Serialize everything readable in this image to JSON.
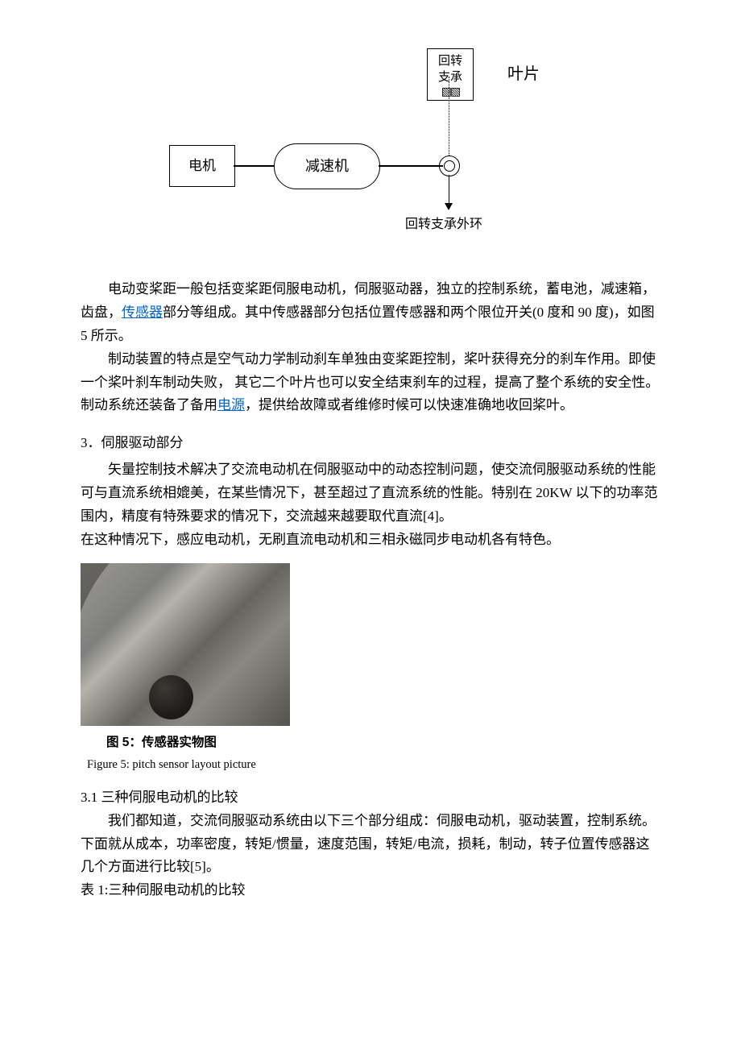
{
  "diagram": {
    "motor_label": "电机",
    "reducer_label": "减速机",
    "bearing_line1": "回转",
    "bearing_line2": "支承",
    "bearing_hatch": "▧▧",
    "blade_label": "叶片",
    "outer_ring_label": "回转支承外环"
  },
  "body": {
    "p1_a": "电动变桨距一般包括变桨距伺服电动机，伺服驱动器，独立的控制系统，蓄电池，减速箱，齿盘，",
    "sensor_link": "传感器",
    "p1_b": "部分等组成。其中传感器部分包括位置传感器和两个限位开关(0 度和 90 度)，如图 5 所示。",
    "p2_a": "制动装置的特点是空气动力学制动刹车单独由变桨距控制，桨叶获得充分的刹车作用。即使一个桨叶刹车制动失败，   其它二个叶片也可以安全结束刹车的过程，提高了整个系统的安全性。制动系统还装备了备用",
    "power_link": "电源",
    "p2_b": "，提供给故障或者维修时候可以快速准确地收回桨叶。",
    "h3": "3．伺服驱动部分",
    "p3": "矢量控制技术解决了交流电动机在伺服驱动中的动态控制问题，使交流伺服驱动系统的性能可与直流系统相媲美，在某些情况下，甚至超过了直流系统的性能。特别在 20KW 以下的功率范围内，精度有特殊要求的情况下，交流越来越要取代直流[4]。",
    "p4": "在这种情况下，感应电动机，无刷直流电动机和三相永磁同步电动机各有特色。",
    "fig5_cn": "图 5：传感器实物图",
    "fig5_en": "Figure 5: pitch sensor layout picture",
    "h31": "3.1  三种伺服电动机的比较",
    "p5": "我们都知道，交流伺服驱动系统由以下三个部分组成：伺服电动机，驱动装置，控制系统。下面就从成本，功率密度，转矩/惯量，速度范围，转矩/电流，损耗，制动，转子位置传感器这几个方面进行比较[5]。",
    "table_title": "表 1:三种伺服电动机的比较"
  },
  "links": {
    "sensor_href": "#",
    "power_href": "#"
  },
  "colors": {
    "link_color": "#0066cc",
    "text_color": "#000000",
    "background": "#ffffff"
  }
}
